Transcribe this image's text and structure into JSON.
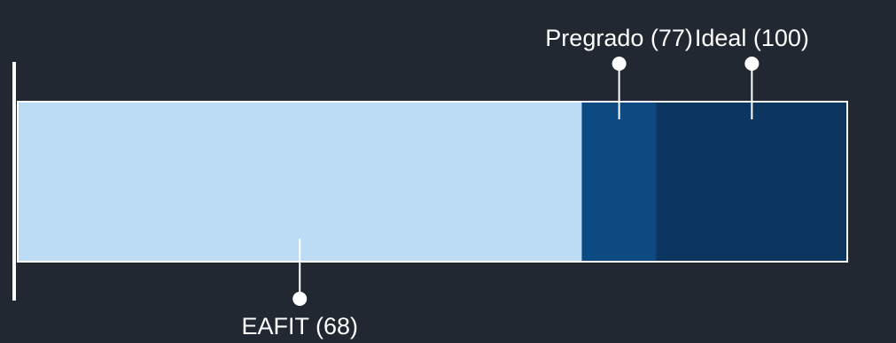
{
  "chart_data": {
    "type": "bar",
    "orientation": "horizontal",
    "stacked_overlay": true,
    "xlim": [
      0,
      100
    ],
    "grid": false,
    "legend": "none",
    "segments": [
      {
        "label": "EAFIT (68)",
        "value": 68,
        "color": "#bcdcf6",
        "callout": "below"
      },
      {
        "label": "Pregrado (77)",
        "value": 77,
        "color": "#0d4a82",
        "callout": "above"
      },
      {
        "label": "Ideal (100)",
        "value": 100,
        "color": "#0c3560",
        "callout": "above"
      }
    ]
  }
}
